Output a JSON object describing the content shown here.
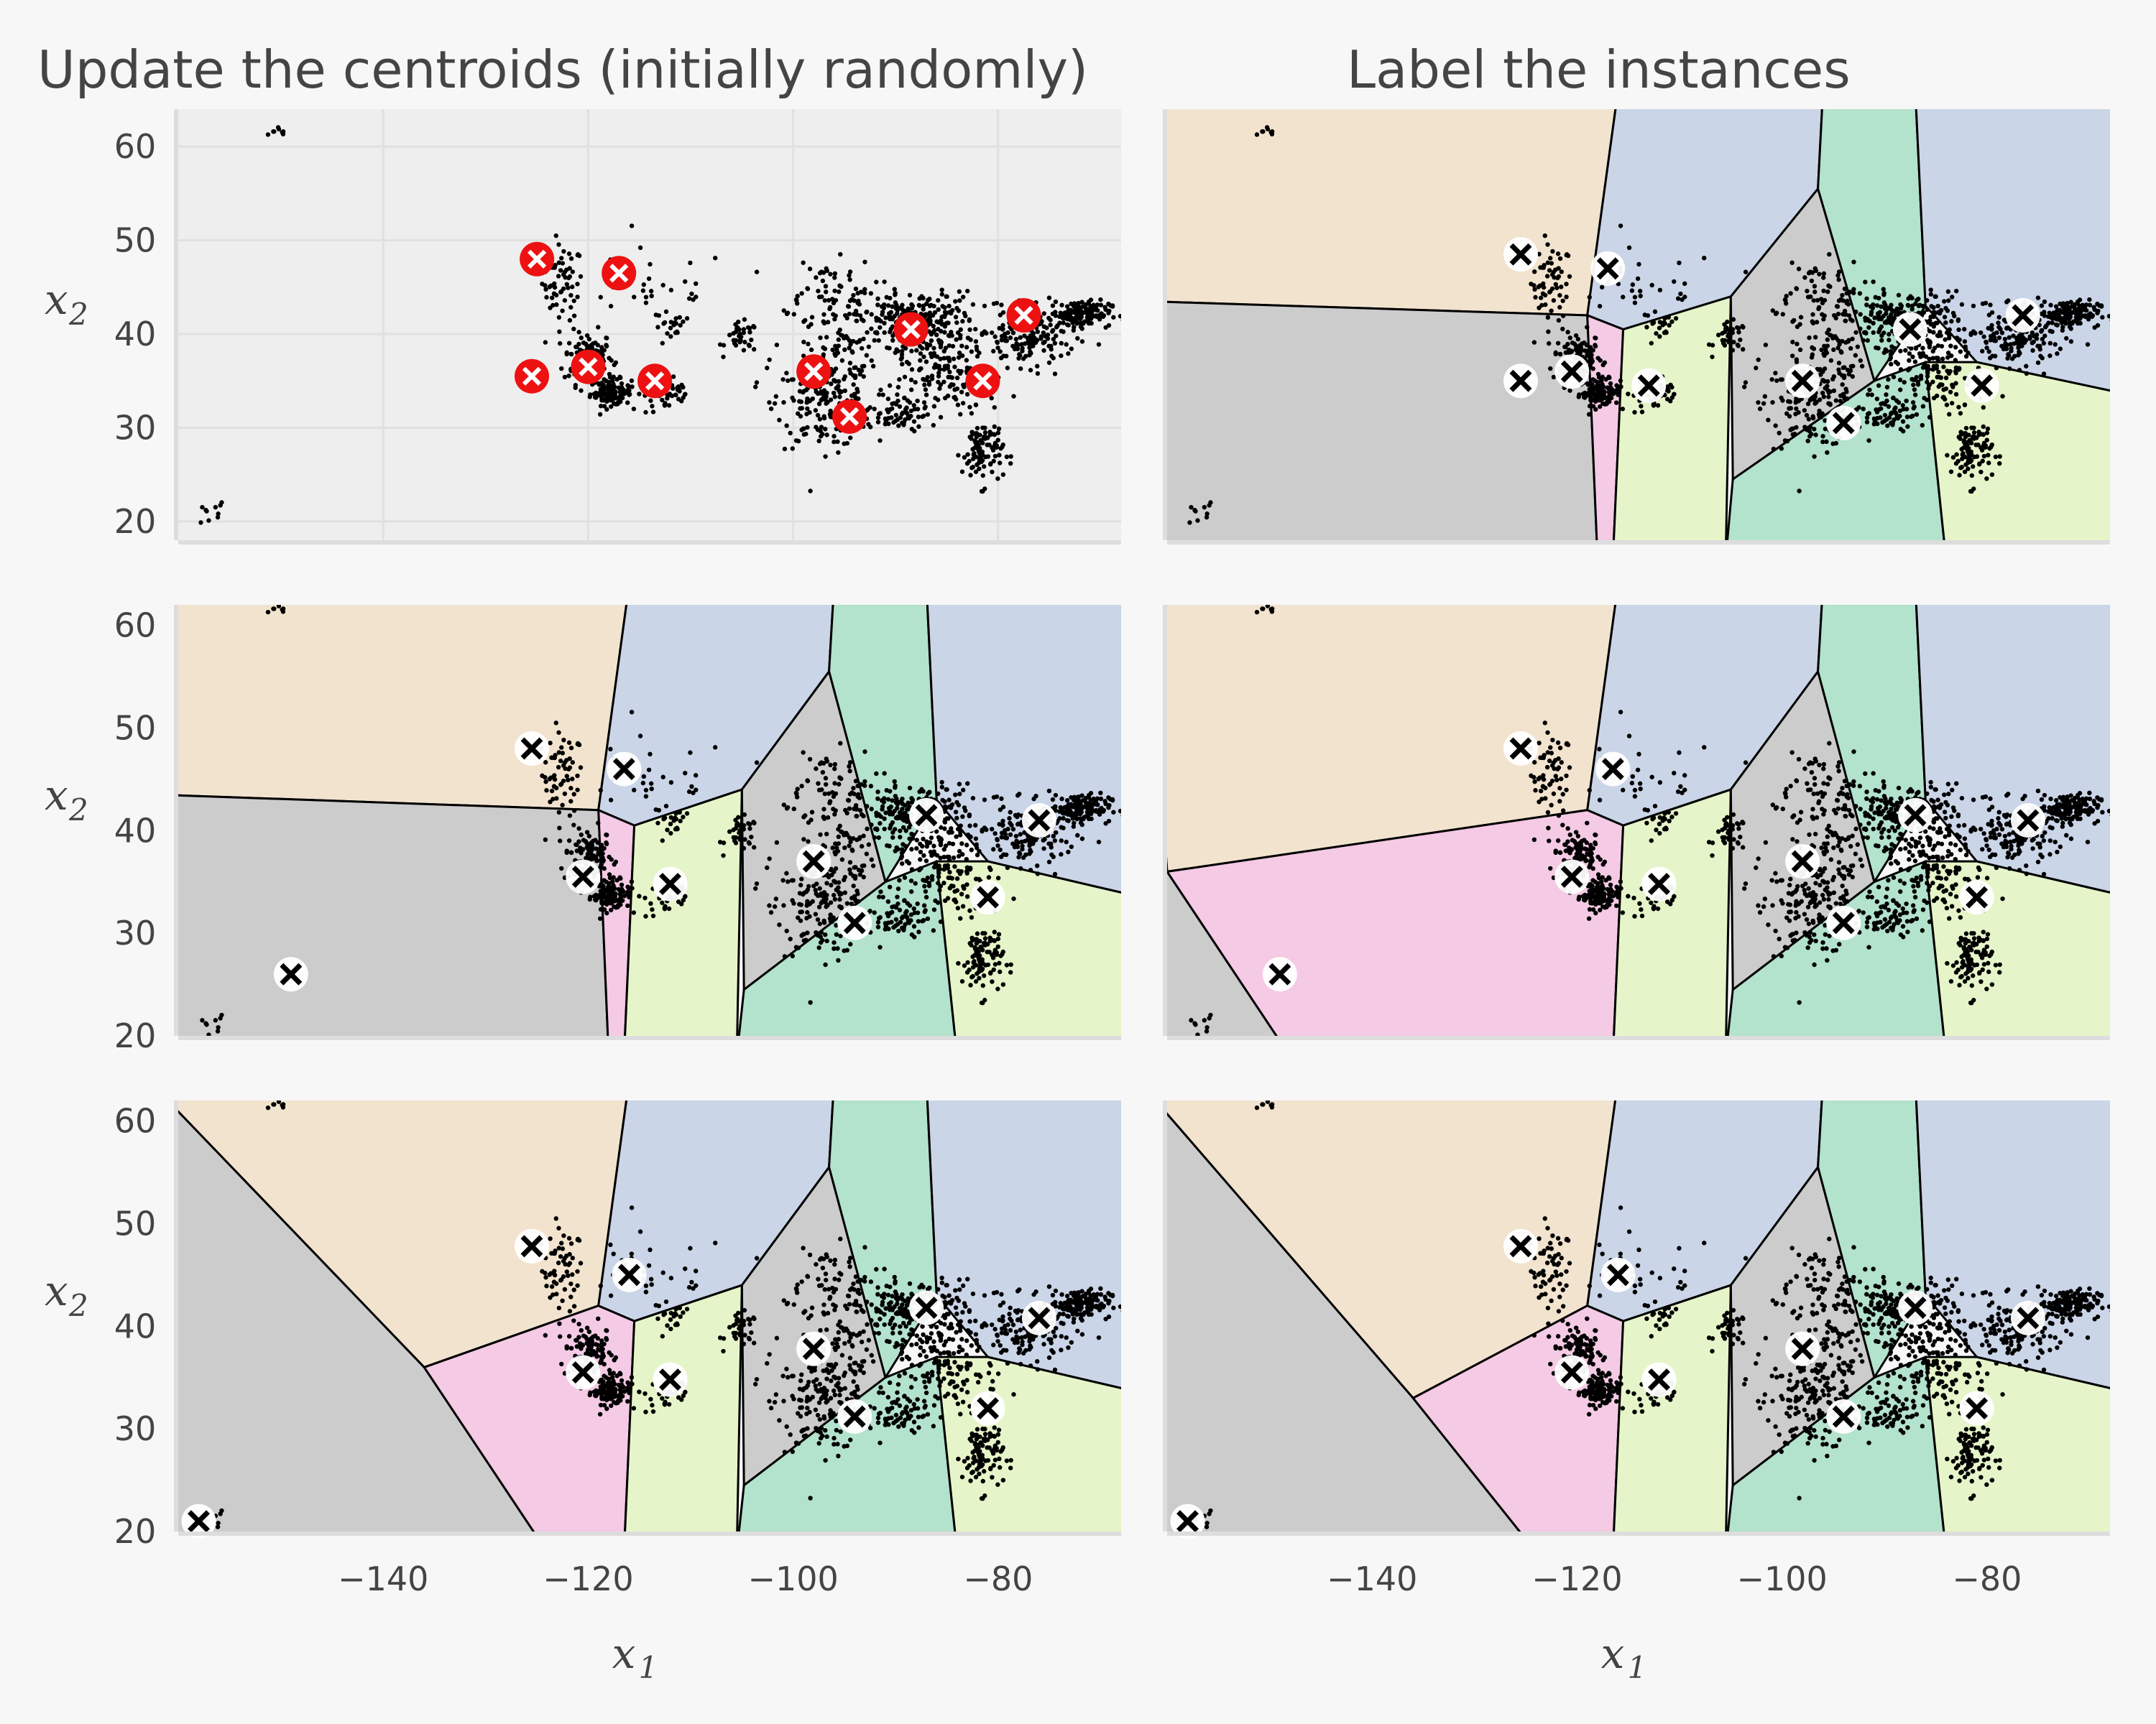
{
  "chart_data": {
    "type": "scatter",
    "titles": {
      "left": "Update the centroids (initially randomly)",
      "right": "Label the instances"
    },
    "xlabel": "x",
    "xlabel_sub": "1",
    "ylabel": "x",
    "ylabel_sub": "2",
    "xlim": [
      -160,
      -68
    ],
    "xticks": [
      -140,
      -120,
      -100,
      -80
    ],
    "xtick_labels": [
      "−140",
      "−120",
      "−100",
      "−80"
    ],
    "yticks": [
      20,
      30,
      40,
      50,
      60
    ],
    "ylims": [
      [
        18,
        64
      ],
      [
        20,
        62
      ],
      [
        20,
        62
      ]
    ],
    "grid": true,
    "region_colors": {
      "beige": "#f2e3cf",
      "blue": "#cbd5e8",
      "teal": "#b3e2cd",
      "gray": "#cccccc",
      "pink": "#f4cae4",
      "lime": "#e6f5c9"
    },
    "centroid_marker_color": "#ee1111",
    "point_color": "#000000",
    "data_clusters": [
      {
        "cx": -150,
        "cy": 61.5,
        "sx": 0.6,
        "sy": 0.4,
        "n": 8
      },
      {
        "cx": -157,
        "cy": 21,
        "sx": 1.0,
        "sy": 0.8,
        "n": 10
      },
      {
        "cx": -122.5,
        "cy": 45.5,
        "sx": 1.0,
        "sy": 2.0,
        "n": 60
      },
      {
        "cx": -120,
        "cy": 37.5,
        "sx": 1.2,
        "sy": 1.4,
        "n": 120
      },
      {
        "cx": -117.8,
        "cy": 33.8,
        "sx": 1.0,
        "sy": 0.7,
        "n": 120
      },
      {
        "cx": -112,
        "cy": 33.5,
        "sx": 1.2,
        "sy": 1.0,
        "n": 40
      },
      {
        "cx": -114,
        "cy": 45,
        "sx": 4.0,
        "sy": 2.0,
        "n": 35
      },
      {
        "cx": -112,
        "cy": 40.5,
        "sx": 0.8,
        "sy": 1.0,
        "n": 20
      },
      {
        "cx": -105,
        "cy": 39.6,
        "sx": 0.8,
        "sy": 0.8,
        "n": 35
      },
      {
        "cx": -97,
        "cy": 32.5,
        "sx": 2.3,
        "sy": 2.3,
        "n": 150
      },
      {
        "cx": -95,
        "cy": 38.5,
        "sx": 3.5,
        "sy": 3.5,
        "n": 120
      },
      {
        "cx": -97,
        "cy": 45,
        "sx": 2.5,
        "sy": 1.5,
        "n": 50
      },
      {
        "cx": -88,
        "cy": 41.5,
        "sx": 3.0,
        "sy": 1.5,
        "n": 240
      },
      {
        "cx": -85,
        "cy": 35.5,
        "sx": 2.5,
        "sy": 2.0,
        "n": 140
      },
      {
        "cx": -81.5,
        "cy": 27.5,
        "sx": 1.0,
        "sy": 1.8,
        "n": 100
      },
      {
        "cx": -77,
        "cy": 39.5,
        "sx": 2.3,
        "sy": 1.5,
        "n": 160
      },
      {
        "cx": -72,
        "cy": 42.2,
        "sx": 1.5,
        "sy": 0.7,
        "n": 140
      },
      {
        "cx": -90,
        "cy": 31.5,
        "sx": 1.5,
        "sy": 1.0,
        "n": 60
      }
    ],
    "panels": [
      {
        "id": "step1-update",
        "row": 0,
        "col": 0,
        "regions": false,
        "marker": "red",
        "centroids": [
          [
            -125,
            48
          ],
          [
            -117,
            46.5
          ],
          [
            -125.5,
            35.5
          ],
          [
            -120,
            36.5
          ],
          [
            -113.5,
            35
          ],
          [
            -98,
            36
          ],
          [
            -94.5,
            31.2
          ],
          [
            -88.5,
            40.5
          ],
          [
            -81.5,
            35
          ],
          [
            -77.5,
            42
          ]
        ]
      },
      {
        "id": "step1-label",
        "row": 0,
        "col": 1,
        "regions": true,
        "marker": "white",
        "centroids": [
          [
            -125.5,
            48.5
          ],
          [
            -117,
            47
          ],
          [
            -125.5,
            35
          ],
          [
            -120.5,
            36
          ],
          [
            -113,
            34.5
          ],
          [
            -98,
            35
          ],
          [
            -94,
            30.5
          ],
          [
            -87.5,
            40.5
          ],
          [
            -80.5,
            34.5
          ],
          [
            -76.5,
            42
          ]
        ],
        "bounds": [
          [
            -160,
            43.5
          ],
          [
            -122,
            42
          ],
          [
            -120,
            42
          ],
          [
            -115.5,
            40.5
          ],
          [
            -105.5,
            44
          ],
          [
            -105.5,
            23.5
          ],
          [
            -87.5,
            24.5
          ],
          [
            -84,
            37
          ],
          [
            -76,
            35.5
          ],
          [
            -76,
            32
          ]
        ]
      },
      {
        "id": "step2-update",
        "row": 1,
        "col": 0,
        "regions": true,
        "marker": "white",
        "centroids": [
          [
            -125.5,
            48
          ],
          [
            -116.5,
            46
          ],
          [
            -149,
            26
          ],
          [
            -120.5,
            35.5
          ],
          [
            -112,
            34.8
          ],
          [
            -98,
            37
          ],
          [
            -94,
            31
          ],
          [
            -87,
            41.5
          ],
          [
            -81,
            33.5
          ],
          [
            -76,
            41
          ]
        ],
        "bounds": [
          [
            -160,
            43.5
          ],
          [
            -122,
            42
          ],
          [
            -120,
            42
          ],
          [
            -115.5,
            40.5
          ],
          [
            -105.5,
            44
          ],
          [
            -105.5,
            24.5
          ],
          [
            -87.5,
            24.5
          ],
          [
            -84,
            37
          ],
          [
            -76,
            35.5
          ],
          [
            -76,
            32
          ]
        ]
      },
      {
        "id": "step2-label",
        "row": 1,
        "col": 1,
        "regions": true,
        "marker": "white",
        "centroids": [
          [
            -125.5,
            48
          ],
          [
            -116.5,
            46
          ],
          [
            -149,
            26
          ],
          [
            -120.5,
            35.5
          ],
          [
            -112,
            34.8
          ],
          [
            -98,
            37
          ],
          [
            -94,
            31
          ],
          [
            -87,
            41.5
          ],
          [
            -81,
            33.5
          ],
          [
            -76,
            41
          ]
        ],
        "bounds": [
          [
            -160,
            36
          ],
          [
            -120,
            42
          ],
          [
            -120,
            42
          ],
          [
            -115.5,
            40.5
          ],
          [
            -105.5,
            44
          ],
          [
            -105.5,
            27
          ],
          [
            -87.5,
            24.5
          ],
          [
            -84,
            37
          ],
          [
            -76,
            35.5
          ],
          [
            -76,
            32
          ]
        ]
      },
      {
        "id": "step3-update",
        "row": 2,
        "col": 0,
        "regions": true,
        "marker": "white",
        "centroids": [
          [
            -125.5,
            47.8
          ],
          [
            -116,
            45
          ],
          [
            -158,
            21
          ],
          [
            -120.5,
            35.5
          ],
          [
            -112,
            34.8
          ],
          [
            -98,
            37.8
          ],
          [
            -94,
            31.2
          ],
          [
            -87,
            41.8
          ],
          [
            -81,
            32
          ],
          [
            -76,
            40.8
          ]
        ],
        "bounds": [
          [
            -136,
            36
          ],
          [
            -120,
            42
          ],
          [
            -120,
            42
          ],
          [
            -115.5,
            40.5
          ],
          [
            -105.5,
            43.2
          ],
          [
            -105.5,
            27
          ],
          [
            -87.5,
            24.5
          ],
          [
            -84,
            37
          ],
          [
            -76,
            35.5
          ],
          [
            -76,
            32
          ]
        ]
      },
      {
        "id": "step3-label",
        "row": 2,
        "col": 1,
        "regions": true,
        "marker": "white",
        "centroids": [
          [
            -125.5,
            47.8
          ],
          [
            -116,
            45
          ],
          [
            -158,
            21
          ],
          [
            -120.5,
            35.5
          ],
          [
            -112,
            34.8
          ],
          [
            -98,
            37.8
          ],
          [
            -94,
            31.2
          ],
          [
            -87,
            41.8
          ],
          [
            -81,
            32
          ],
          [
            -76,
            40.8
          ]
        ],
        "bounds": [
          [
            -136,
            33
          ],
          [
            -120,
            42
          ],
          [
            -120,
            42
          ],
          [
            -115.5,
            40.5
          ],
          [
            -105.5,
            43
          ],
          [
            -105.5,
            27
          ],
          [
            -87.5,
            24.5
          ],
          [
            -84,
            37
          ],
          [
            -76,
            35.5
          ],
          [
            -76,
            32
          ]
        ]
      }
    ]
  }
}
